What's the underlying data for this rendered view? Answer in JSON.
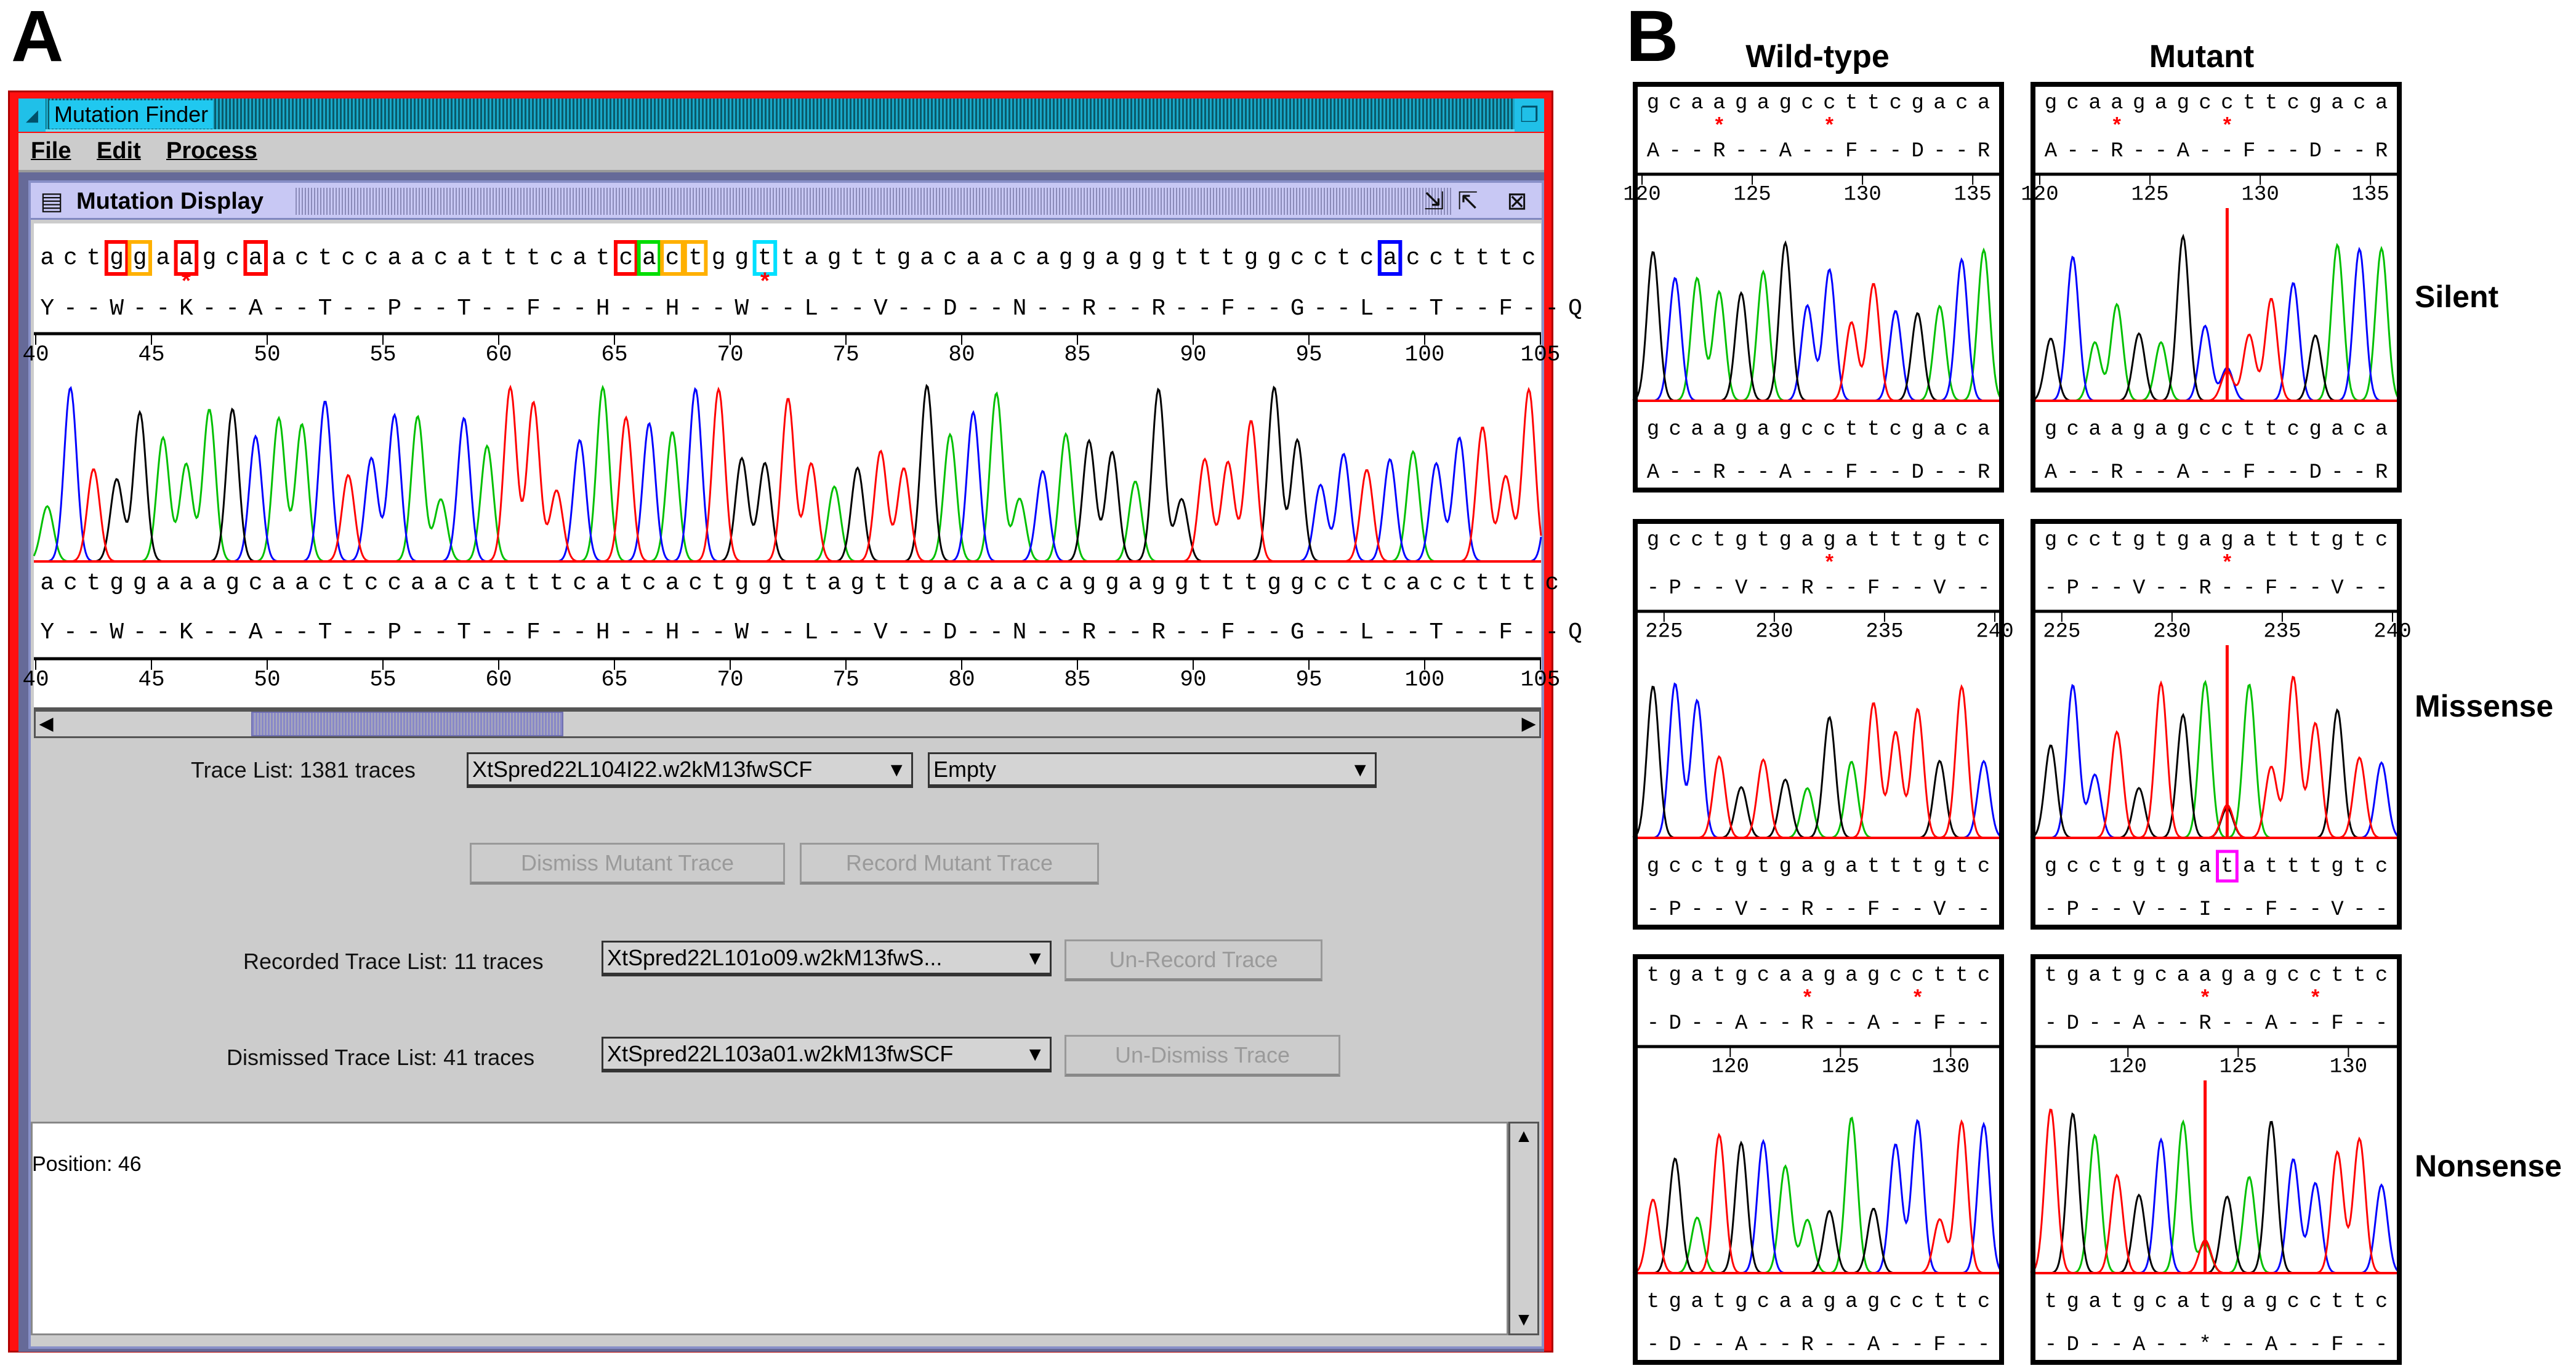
{
  "panel_a": {
    "letter": "A",
    "window": {
      "title": "Mutation Finder",
      "menu": [
        "File",
        "Edit",
        "Process"
      ],
      "internal_frame_title": "Mutation Display",
      "colors": {
        "border": "#ff1010",
        "title_bar": "#20c8f0",
        "frame": "#8890c8"
      }
    },
    "display": {
      "axis": {
        "start": 40,
        "ticks": [
          40,
          45,
          50,
          55,
          60,
          65,
          70,
          75,
          80,
          85,
          90,
          95,
          100,
          105
        ]
      },
      "reference_seq": "actggaagcaactccaacatttcatcactggttagttgacaacaggaggtttggcctcacctttc",
      "reference_aa": "Y--W--K--A--T--P--T--F--H--H--W--L--V--D--N--R--R--F--G--L--T--F--Q",
      "reference_aa_asterisks": [
        6,
        31
      ],
      "highlights": [
        {
          "index": 3,
          "color": "#ff0000"
        },
        {
          "index": 4,
          "color": "#ffb000"
        },
        {
          "index": 6,
          "color": "#ff0000"
        },
        {
          "index": 9,
          "color": "#ff0000"
        },
        {
          "index": 25,
          "color": "#ff0000"
        },
        {
          "index": 26,
          "color": "#00dd00"
        },
        {
          "index": 27,
          "color": "#ffb000"
        },
        {
          "index": 28,
          "color": "#ffb000"
        },
        {
          "index": 31,
          "color": "#00e0ff"
        },
        {
          "index": 58,
          "color": "#0000ff"
        }
      ],
      "trace_seq": "actggaaagcaactccaacatttcatcactggttagttgacaacaggaggtttggcctcacctttc",
      "trace_aa": "Y--W--K--A--T--P--T--F--H--H--W--L--V--D--N--R--R--F--G--L--T--F--Q",
      "base_colors": {
        "a": "#00c000",
        "c": "#0000ff",
        "g": "#000000",
        "t": "#ff0000"
      }
    },
    "controls": {
      "trace_list_label": "Trace List: 1381 traces",
      "trace_list_value": "XtSpred22L104I22.w2kM13fwSCF",
      "second_combo_value": "Empty",
      "dismiss_button": "Dismiss Mutant Trace",
      "record_button": "Record Mutant Trace",
      "recorded_label": "Recorded Trace List: 11 traces",
      "recorded_value": "XtSpred22L101o09.w2kM13fwS...",
      "unrecord_button": "Un-Record Trace",
      "dismissed_label": "Dismissed Trace List: 41 traces",
      "dismissed_value": "XtSpred22L103a01.w2kM13fwSCF",
      "undismiss_button": "Un-Dismiss Trace",
      "arrow": "▼"
    },
    "status_text": "Position: 46"
  },
  "panel_b": {
    "letter": "B",
    "column_headers": [
      "Wild-type",
      "Mutant"
    ],
    "rows": [
      {
        "label": "Silent",
        "wild_type": {
          "top_seq": "gcaagagccttcgaca",
          "top_aa": "A--R--A--F--D--R",
          "asterisks": [
            3,
            8
          ],
          "axis": {
            "start": 120,
            "ticks": [
              120,
              125,
              130,
              135
            ]
          },
          "bottom_seq": "gcaagagccttcgaca",
          "bottom_aa": "A--R--A--F--D--R"
        },
        "mutant": {
          "top_seq": "gcaagagccttcgaca",
          "top_aa": "A--R--A--F--D--R",
          "asterisks": [
            3,
            8
          ],
          "axis": {
            "start": 120,
            "ticks": [
              120,
              125,
              130,
              135
            ]
          },
          "bottom_seq": "gcaagagccttcgaca",
          "bottom_aa": "A--R--A--F--D--R",
          "mutation_index": 8,
          "secondary_base": "t"
        }
      },
      {
        "label": "Missense",
        "wild_type": {
          "top_seq": "gcctgtgagatttgtc",
          "top_aa": "-P--V--R--F--V--",
          "asterisks": [
            8
          ],
          "axis": {
            "start": 224,
            "ticks": [
              225,
              230,
              235,
              240
            ]
          },
          "bottom_seq": "gcctgtgagatttgtc",
          "bottom_aa": "-P--V--R--F--V--"
        },
        "mutant": {
          "top_seq": "gcctgtgagatttgtc",
          "top_aa": "-P--V--R--F--V--",
          "asterisks": [
            8
          ],
          "axis": {
            "start": 224,
            "ticks": [
              225,
              230,
              235,
              240
            ]
          },
          "bottom_seq": "gcctgtgatatttgtc",
          "bottom_aa": "-P--V--I--F--V--",
          "mutation_index": 8,
          "secondary_base": "g",
          "highlight": {
            "index": 8,
            "color": "#ff00ff"
          }
        }
      },
      {
        "label": "Nonsense",
        "wild_type": {
          "top_seq": "tgatgcaagagccttc",
          "top_aa": "-D--A--R--A--F--",
          "asterisks": [
            7,
            12
          ],
          "axis": {
            "start": 116,
            "ticks": [
              120,
              125,
              130
            ]
          },
          "bottom_seq": "tgatgcaagagccttc",
          "bottom_aa": "-D--A--R--A--F--"
        },
        "mutant": {
          "top_seq": "tgatgcaagagccttc",
          "top_aa": "-D--A--R--A--F--",
          "asterisks": [
            7,
            12
          ],
          "axis": {
            "start": 116,
            "ticks": [
              120,
              125,
              130
            ]
          },
          "bottom_seq": "tgatgcatgagccttc",
          "bottom_aa": "-D--A--*--A--F--",
          "mutation_index": 7,
          "secondary_base": "a"
        }
      }
    ],
    "mutation_line_color": "#ff0000",
    "asterisk_color": "#ff0000"
  }
}
